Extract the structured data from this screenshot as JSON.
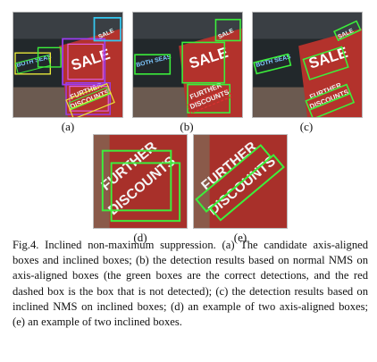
{
  "figure": {
    "panels": [
      {
        "id": "a",
        "label": "(a)",
        "signs": {
          "sale": "SALE",
          "top": "SALE",
          "left": "BOTH SEAS",
          "further": "FURTHER",
          "discounts": "DISCOUNTS"
        }
      },
      {
        "id": "b",
        "label": "(b)",
        "signs": {
          "sale": "SALE",
          "top": "SALE",
          "left": "BOTH SEAS",
          "further": "FURTHER",
          "discounts": "DISCOUNTS"
        }
      },
      {
        "id": "c",
        "label": "(c)",
        "signs": {
          "sale": "SALE",
          "top": "SALE",
          "left": "BOTH SEAS",
          "further": "FURTHER",
          "discounts": "DISCOUNTS"
        }
      },
      {
        "id": "d",
        "label": "(d)",
        "signs": {
          "further": "FURTHER",
          "discounts": "DISCOUNTS"
        }
      },
      {
        "id": "e",
        "label": "(e)",
        "signs": {
          "further": "FURTHER",
          "discounts": "DISCOUNTS"
        }
      }
    ],
    "caption": "Fig.4. Inclined non-maximum suppression. (a) The candidate axis-aligned boxes and inclined boxes; (b) the detection results based on normal NMS on axis-aligned boxes (the green boxes are the correct detections, and the red dashed box is the box that is not detected); (c) the detection results based on inclined NMS on inclined boxes; (d) an example of two axis-aligned boxes; (e) an example of two inclined boxes.",
    "colors": {
      "sign_red": "#b3322c",
      "dark_bg": "#1e2326",
      "box_green": "#3cf03c",
      "box_yellow": "#e8e83a",
      "box_purple": "#9b3df0",
      "box_cyan": "#35c8f0",
      "box_pink": "#e05ce0"
    }
  }
}
